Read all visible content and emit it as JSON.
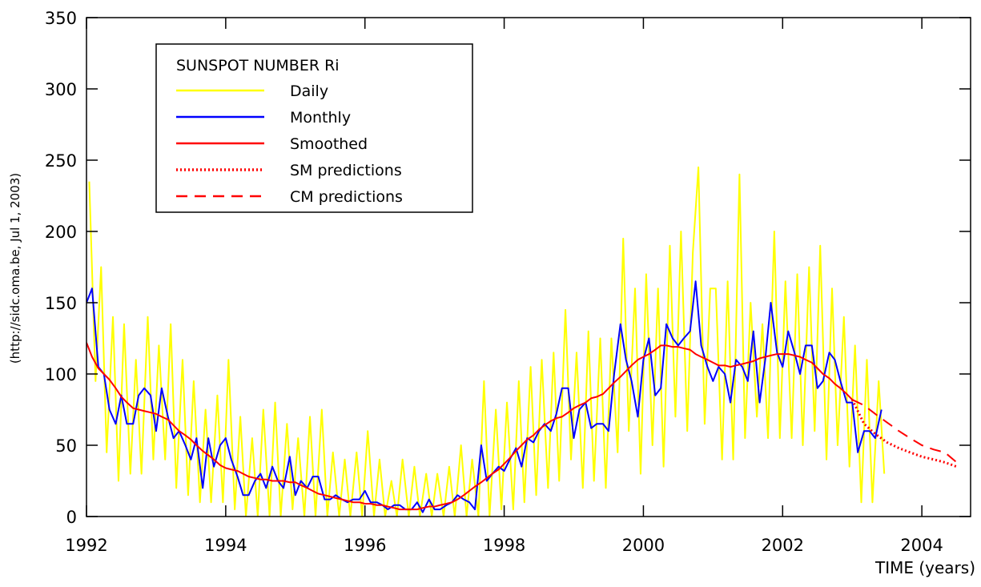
{
  "chart_data": {
    "type": "line",
    "legend_title": "SUNSPOT NUMBER Ri",
    "y_label": "(http://sidc.oma.be, Jul  1, 2003)",
    "x_label": "TIME (years)",
    "xlim": [
      1992,
      2004.7
    ],
    "ylim": [
      0,
      350
    ],
    "xticks": [
      1992,
      1994,
      1996,
      1998,
      2000,
      2002,
      2004
    ],
    "yticks": [
      0,
      50,
      100,
      150,
      200,
      250,
      300,
      350
    ],
    "legend": "upper left",
    "series": [
      {
        "name": "Daily",
        "color": "#ffff00",
        "style": "solid",
        "x": [
          1992.04,
          1992.13,
          1992.21,
          1992.29,
          1992.38,
          1992.46,
          1992.54,
          1992.63,
          1992.71,
          1992.79,
          1992.88,
          1992.96,
          1993.04,
          1993.13,
          1993.21,
          1993.29,
          1993.38,
          1993.46,
          1993.54,
          1993.63,
          1993.71,
          1993.79,
          1993.88,
          1993.96,
          1994.04,
          1994.13,
          1994.21,
          1994.29,
          1994.38,
          1994.46,
          1994.54,
          1994.63,
          1994.71,
          1994.79,
          1994.88,
          1994.96,
          1995.04,
          1995.13,
          1995.21,
          1995.29,
          1995.38,
          1995.46,
          1995.54,
          1995.63,
          1995.71,
          1995.79,
          1995.88,
          1995.96,
          1996.04,
          1996.13,
          1996.21,
          1996.29,
          1996.38,
          1996.46,
          1996.54,
          1996.63,
          1996.71,
          1996.79,
          1996.88,
          1996.96,
          1997.04,
          1997.13,
          1997.21,
          1997.29,
          1997.38,
          1997.46,
          1997.54,
          1997.63,
          1997.71,
          1997.79,
          1997.88,
          1997.96,
          1998.04,
          1998.13,
          1998.21,
          1998.29,
          1998.38,
          1998.46,
          1998.54,
          1998.63,
          1998.71,
          1998.79,
          1998.88,
          1998.96,
          1999.04,
          1999.13,
          1999.21,
          1999.29,
          1999.38,
          1999.46,
          1999.54,
          1999.63,
          1999.71,
          1999.79,
          1999.88,
          1999.96,
          2000.04,
          2000.13,
          2000.21,
          2000.29,
          2000.38,
          2000.46,
          2000.54,
          2000.63,
          2000.71,
          2000.79,
          2000.88,
          2000.96,
          2001.04,
          2001.13,
          2001.21,
          2001.29,
          2001.38,
          2001.46,
          2001.54,
          2001.63,
          2001.71,
          2001.79,
          2001.88,
          2001.96,
          2002.04,
          2002.13,
          2002.21,
          2002.29,
          2002.38,
          2002.46,
          2002.54,
          2002.63,
          2002.71,
          2002.79,
          2002.88,
          2002.96,
          2003.04,
          2003.13,
          2003.21,
          2003.29,
          2003.38,
          2003.46
        ],
        "values": [
          235,
          95,
          175,
          45,
          140,
          25,
          135,
          30,
          110,
          30,
          140,
          40,
          120,
          40,
          135,
          20,
          110,
          15,
          95,
          10,
          75,
          10,
          85,
          10,
          110,
          5,
          70,
          0,
          55,
          0,
          75,
          0,
          80,
          0,
          65,
          5,
          55,
          0,
          70,
          0,
          75,
          0,
          45,
          0,
          40,
          0,
          45,
          0,
          60,
          0,
          40,
          0,
          25,
          0,
          40,
          0,
          35,
          0,
          30,
          0,
          30,
          0,
          35,
          0,
          50,
          0,
          40,
          0,
          95,
          0,
          75,
          5,
          80,
          5,
          95,
          10,
          105,
          15,
          110,
          20,
          115,
          25,
          145,
          40,
          115,
          20,
          130,
          25,
          125,
          20,
          125,
          45,
          195,
          60,
          160,
          30,
          170,
          50,
          160,
          35,
          190,
          70,
          200,
          60,
          185,
          245,
          65,
          160,
          160,
          40,
          165,
          40,
          240,
          55,
          150,
          70,
          135,
          55,
          200,
          55,
          165,
          55,
          170,
          50,
          175,
          60,
          190,
          40,
          160,
          50,
          140,
          35,
          120,
          10,
          110,
          10,
          95,
          30
        ]
      },
      {
        "name": "Monthly",
        "color": "#0000ff",
        "style": "solid",
        "x": [
          1992.0,
          1992.08,
          1992.17,
          1992.25,
          1992.33,
          1992.42,
          1992.5,
          1992.58,
          1992.67,
          1992.75,
          1992.83,
          1992.92,
          1993.0,
          1993.08,
          1993.17,
          1993.25,
          1993.33,
          1993.42,
          1993.5,
          1993.58,
          1993.67,
          1993.75,
          1993.83,
          1993.92,
          1994.0,
          1994.08,
          1994.17,
          1994.25,
          1994.33,
          1994.42,
          1994.5,
          1994.58,
          1994.67,
          1994.75,
          1994.83,
          1994.92,
          1995.0,
          1995.08,
          1995.17,
          1995.25,
          1995.33,
          1995.42,
          1995.5,
          1995.58,
          1995.67,
          1995.75,
          1995.83,
          1995.92,
          1996.0,
          1996.08,
          1996.17,
          1996.25,
          1996.33,
          1996.42,
          1996.5,
          1996.58,
          1996.67,
          1996.75,
          1996.83,
          1996.92,
          1997.0,
          1997.08,
          1997.17,
          1997.25,
          1997.33,
          1997.42,
          1997.5,
          1997.58,
          1997.67,
          1997.75,
          1997.83,
          1997.92,
          1998.0,
          1998.08,
          1998.17,
          1998.25,
          1998.33,
          1998.42,
          1998.5,
          1998.58,
          1998.67,
          1998.75,
          1998.83,
          1998.92,
          1999.0,
          1999.08,
          1999.17,
          1999.25,
          1999.33,
          1999.42,
          1999.5,
          1999.58,
          1999.67,
          1999.75,
          1999.83,
          1999.92,
          2000.0,
          2000.08,
          2000.17,
          2000.25,
          2000.33,
          2000.42,
          2000.5,
          2000.58,
          2000.67,
          2000.75,
          2000.83,
          2000.92,
          2001.0,
          2001.08,
          2001.17,
          2001.25,
          2001.33,
          2001.42,
          2001.5,
          2001.58,
          2001.67,
          2001.75,
          2001.83,
          2001.92,
          2002.0,
          2002.08,
          2002.17,
          2002.25,
          2002.33,
          2002.42,
          2002.5,
          2002.58,
          2002.67,
          2002.75,
          2002.83,
          2002.92,
          2003.0,
          2003.08,
          2003.17,
          2003.25,
          2003.33,
          2003.42
        ],
        "values": [
          150,
          160,
          105,
          100,
          75,
          65,
          85,
          65,
          65,
          85,
          90,
          85,
          60,
          90,
          70,
          55,
          60,
          50,
          40,
          55,
          20,
          55,
          35,
          50,
          55,
          40,
          28,
          15,
          15,
          25,
          30,
          20,
          35,
          25,
          20,
          42,
          15,
          25,
          20,
          28,
          28,
          12,
          12,
          15,
          12,
          10,
          12,
          12,
          18,
          10,
          10,
          8,
          5,
          8,
          8,
          5,
          5,
          10,
          3,
          12,
          5,
          5,
          8,
          10,
          15,
          12,
          10,
          5,
          50,
          25,
          30,
          35,
          32,
          40,
          48,
          35,
          55,
          52,
          60,
          65,
          60,
          72,
          90,
          90,
          55,
          75,
          80,
          62,
          65,
          65,
          60,
          100,
          135,
          110,
          95,
          70,
          110,
          125,
          85,
          90,
          135,
          125,
          120,
          125,
          130,
          165,
          120,
          105,
          95,
          105,
          100,
          80,
          110,
          105,
          95,
          130,
          80,
          110,
          150,
          115,
          105,
          130,
          115,
          100,
          120,
          120,
          90,
          95,
          115,
          110,
          95,
          80,
          80,
          45,
          60,
          60,
          55,
          75
        ]
      },
      {
        "name": "Smoothed",
        "color": "#ff0000",
        "style": "solid",
        "x": [
          1992.0,
          1992.08,
          1992.17,
          1992.25,
          1992.33,
          1992.42,
          1992.5,
          1992.58,
          1992.67,
          1992.75,
          1992.83,
          1992.92,
          1993.0,
          1993.08,
          1993.17,
          1993.25,
          1993.33,
          1993.42,
          1993.5,
          1993.58,
          1993.67,
          1993.75,
          1993.83,
          1993.92,
          1994.0,
          1994.08,
          1994.17,
          1994.25,
          1994.33,
          1994.42,
          1994.5,
          1994.58,
          1994.67,
          1994.75,
          1994.83,
          1994.92,
          1995.0,
          1995.08,
          1995.17,
          1995.25,
          1995.33,
          1995.42,
          1995.5,
          1995.58,
          1995.67,
          1995.75,
          1995.83,
          1995.92,
          1996.0,
          1996.08,
          1996.17,
          1996.25,
          1996.33,
          1996.42,
          1996.5,
          1996.58,
          1996.67,
          1996.75,
          1996.83,
          1996.92,
          1997.0,
          1997.08,
          1997.17,
          1997.25,
          1997.33,
          1997.42,
          1997.5,
          1997.58,
          1997.67,
          1997.75,
          1997.83,
          1997.92,
          1998.0,
          1998.08,
          1998.17,
          1998.25,
          1998.33,
          1998.42,
          1998.5,
          1998.58,
          1998.67,
          1998.75,
          1998.83,
          1998.92,
          1999.0,
          1999.08,
          1999.17,
          1999.25,
          1999.33,
          1999.42,
          1999.5,
          1999.58,
          1999.67,
          1999.75,
          1999.83,
          1999.92,
          2000.0,
          2000.08,
          2000.17,
          2000.25,
          2000.33,
          2000.42,
          2000.5,
          2000.58,
          2000.67,
          2000.75,
          2000.83,
          2000.92,
          2001.0,
          2001.08,
          2001.17,
          2001.25,
          2001.33,
          2001.42,
          2001.5,
          2001.58,
          2001.67,
          2001.75,
          2001.83,
          2001.92,
          2002.0,
          2002.08,
          2002.17,
          2002.25,
          2002.33,
          2002.42,
          2002.5,
          2002.58,
          2002.67,
          2002.75,
          2002.83,
          2002.92,
          2003.0
        ],
        "values": [
          122,
          112,
          104,
          100,
          96,
          90,
          84,
          80,
          76,
          75,
          74,
          73,
          72,
          70,
          68,
          64,
          60,
          57,
          54,
          50,
          46,
          43,
          40,
          36,
          34,
          33,
          32,
          30,
          28,
          27,
          26,
          26,
          25,
          25,
          25,
          24,
          24,
          22,
          20,
          18,
          16,
          15,
          14,
          13,
          12,
          11,
          10,
          10,
          9,
          9,
          8,
          8,
          7,
          6,
          5,
          5,
          5,
          5,
          6,
          7,
          7,
          8,
          9,
          10,
          12,
          15,
          18,
          21,
          24,
          27,
          30,
          33,
          37,
          41,
          46,
          50,
          54,
          57,
          61,
          64,
          67,
          69,
          70,
          73,
          76,
          78,
          80,
          83,
          84,
          86,
          90,
          94,
          98,
          102,
          106,
          110,
          112,
          114,
          117,
          120,
          120,
          119,
          119,
          118,
          117,
          114,
          112,
          110,
          108,
          106,
          106,
          105,
          106,
          107,
          108,
          109,
          111,
          112,
          113,
          114,
          114,
          114,
          113,
          112,
          110,
          108,
          104,
          100,
          97,
          93,
          90,
          86,
          82
        ]
      },
      {
        "name": "SM predictions",
        "color": "#ff0000",
        "style": "dotted",
        "x": [
          2003.0,
          2003.17,
          2003.33,
          2003.5,
          2003.67,
          2003.83,
          2004.0,
          2004.17,
          2004.33,
          2004.5
        ],
        "values": [
          82,
          65,
          58,
          52,
          48,
          45,
          42,
          40,
          38,
          35
        ]
      },
      {
        "name": "CM predictions",
        "color": "#ff0000",
        "style": "dashed",
        "x": [
          2003.0,
          2003.17,
          2003.33,
          2003.5,
          2003.67,
          2003.83,
          2004.0,
          2004.17,
          2004.33,
          2004.5
        ],
        "values": [
          82,
          78,
          72,
          66,
          60,
          55,
          50,
          47,
          45,
          38
        ]
      }
    ]
  }
}
